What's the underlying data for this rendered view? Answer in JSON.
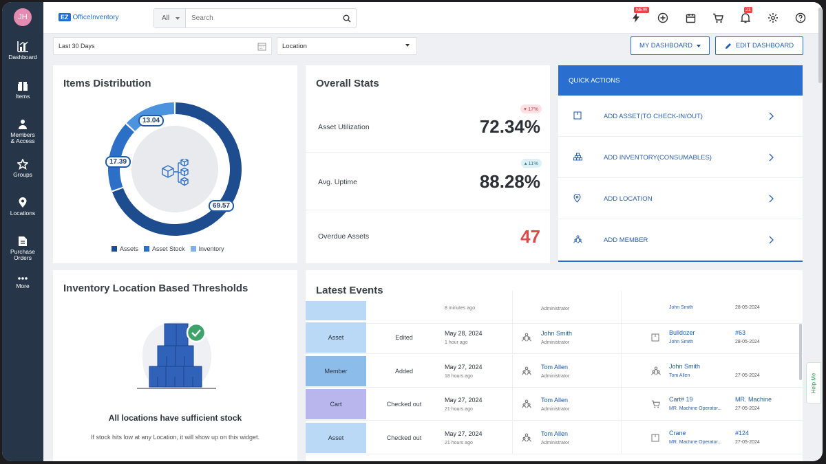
{
  "user": {
    "initials": "JH"
  },
  "brand": {
    "logo_mark": "EZ",
    "logo_text": "OfficeInventory",
    "accent": "#1f6fd1"
  },
  "sidebar": {
    "items": [
      {
        "label": "Dashboard",
        "icon": "dashboard-icon"
      },
      {
        "label": "Items",
        "icon": "items-icon"
      },
      {
        "label": "Members & Access",
        "icon": "members-icon"
      },
      {
        "label": "Groups",
        "icon": "groups-icon"
      },
      {
        "label": "Locations",
        "icon": "location-pin-icon"
      },
      {
        "label": "Purchase Orders",
        "icon": "purchase-orders-icon"
      },
      {
        "label": "More",
        "icon": "more-dots-icon"
      }
    ]
  },
  "search": {
    "scope": "All",
    "placeholder": "Search"
  },
  "topbar": {
    "new_badge": "NEW",
    "notification_count": "21"
  },
  "filters": {
    "date_range": "Last 30 Days",
    "location": "Location"
  },
  "buttons": {
    "my_dashboard": "MY DASHBOARD",
    "edit_dashboard": "EDIT DASHBOARD"
  },
  "items_distribution": {
    "title": "Items Distribution",
    "chart_data": {
      "type": "pie",
      "categories": [
        "Assets",
        "Asset Stock",
        "Inventory"
      ],
      "values": [
        69.57,
        17.39,
        13.04
      ],
      "colors": [
        "#1d4c8f",
        "#2c6fc7",
        "#4b93dd"
      ]
    },
    "labels": {
      "assets": "69.57",
      "asset_stock": "17.39",
      "inventory": "13.04"
    },
    "legend": [
      "Assets",
      "Asset Stock",
      "Inventory"
    ]
  },
  "overall_stats": {
    "title": "Overall Stats",
    "rows": [
      {
        "label": "Asset Utilization",
        "value": "72.34%",
        "change": "▾ 17%"
      },
      {
        "label": "Avg. Uptime",
        "value": "88.28%",
        "change": "▴ 11%"
      },
      {
        "label": "Overdue Assets",
        "value": "47"
      }
    ]
  },
  "quick_actions": {
    "title": "QUICK ACTIONS",
    "items": [
      {
        "label": "ADD ASSET(TO CHECK-IN/OUT)",
        "icon": "asset-box-icon"
      },
      {
        "label": "ADD INVENTORY(CONSUMABLES)",
        "icon": "inventory-stack-icon"
      },
      {
        "label": "ADD LOCATION",
        "icon": "location-pin-icon"
      },
      {
        "label": "ADD MEMBER",
        "icon": "member-group-icon"
      }
    ]
  },
  "thresholds": {
    "title": "Inventory Location Based Thresholds",
    "status": "All locations have sufficient stock",
    "hint": "If stock hits low at any Location, it will show up on this widget."
  },
  "latest_events": {
    "title": "Latest Events",
    "partial_top": {
      "ago": "8 minutes ago",
      "role": "Administrator",
      "sub": "John Smith",
      "ref_date": "28-05-2024"
    },
    "rows": [
      {
        "type": "Asset",
        "color": "#b9d9f7",
        "action": "Edited",
        "date": "May 28, 2024",
        "ago": "1 hour ago",
        "user": "John Smith",
        "role": "Administrator",
        "item": "Bulldozer",
        "sub": "John Smith",
        "ref": "#63",
        "ref_date": "28-05-2024"
      },
      {
        "type": "Member",
        "color": "#8cbcea",
        "action": "Added",
        "date": "May 27, 2024",
        "ago": "18 hours ago",
        "user": "Tom Allen",
        "role": "Administrator",
        "item": "John Smith",
        "sub": "Tom Allen",
        "ref": "",
        "ref_date": "27-05-2024"
      },
      {
        "type": "Cart",
        "color": "#b8b6ec",
        "action": "Checked out",
        "date": "May 27, 2024",
        "ago": "21 hours ago",
        "user": "Tom Allen",
        "role": "Administrator",
        "item": "Cart# 19",
        "sub": "MR. Machine Operator...",
        "ref": "MR. Machine",
        "ref_date": "27-05-2024"
      },
      {
        "type": "Asset",
        "color": "#b9d9f7",
        "action": "Checked out",
        "date": "May 27, 2024",
        "ago": "21 hours ago",
        "user": "Tom Allen",
        "role": "Administrator",
        "item": "Crane",
        "sub": "MR. Machine Operator...",
        "ref": "#124",
        "ref_date": "27-05-2024"
      }
    ]
  },
  "help": {
    "label": "Help Me"
  }
}
